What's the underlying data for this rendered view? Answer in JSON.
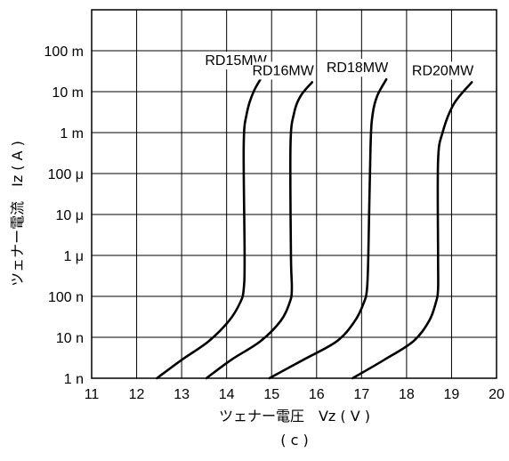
{
  "chart_data": {
    "type": "line",
    "xlabel": "ツェナー電圧　Vz ( V )",
    "ylabel": "ツェナー電流　Iz ( A )",
    "caption": "( c )",
    "xlim": [
      11,
      20
    ],
    "x_ticks": [
      11,
      12,
      13,
      14,
      15,
      16,
      17,
      18,
      19,
      20
    ],
    "x_tick_labels": [
      "11",
      "12",
      "13",
      "14",
      "15",
      "16",
      "17",
      "18",
      "19",
      "20"
    ],
    "y_scale": "log",
    "ylim": [
      1e-09,
      1
    ],
    "y_ticks": [
      1e-09,
      1e-08,
      1e-07,
      1e-06,
      1e-05,
      0.0001,
      0.001,
      0.01,
      0.1
    ],
    "y_tick_labels": [
      "1 n",
      "10 n",
      "100 n",
      "1 μ",
      "10 μ",
      "100 μ",
      "1 m",
      "10 m",
      "100 m"
    ],
    "grid": true,
    "series": [
      {
        "name": "RD15MW",
        "points": [
          [
            12.45,
            1e-09
          ],
          [
            13.0,
            2.8e-09
          ],
          [
            13.6,
            8e-09
          ],
          [
            14.05,
            2.5e-08
          ],
          [
            14.3,
            7e-08
          ],
          [
            14.38,
            1.5e-07
          ],
          [
            14.4,
            1e-06
          ],
          [
            14.38,
            0.0005
          ],
          [
            14.45,
            0.003
          ],
          [
            14.6,
            0.01
          ],
          [
            14.85,
            0.03
          ]
        ]
      },
      {
        "name": "RD16MW",
        "points": [
          [
            13.55,
            1e-09
          ],
          [
            14.1,
            2.8e-09
          ],
          [
            14.75,
            8e-09
          ],
          [
            15.2,
            2.5e-08
          ],
          [
            15.4,
            7e-08
          ],
          [
            15.45,
            1.5e-07
          ],
          [
            15.43,
            1e-06
          ],
          [
            15.42,
            0.0005
          ],
          [
            15.5,
            0.003
          ],
          [
            15.65,
            0.008
          ],
          [
            15.9,
            0.017
          ]
        ]
      },
      {
        "name": "RD18MW",
        "points": [
          [
            14.95,
            1e-09
          ],
          [
            15.7,
            2.8e-09
          ],
          [
            16.45,
            8e-09
          ],
          [
            16.85,
            2.5e-08
          ],
          [
            17.05,
            7e-08
          ],
          [
            17.12,
            1.5e-07
          ],
          [
            17.15,
            1e-06
          ],
          [
            17.2,
            0.0005
          ],
          [
            17.25,
            0.003
          ],
          [
            17.35,
            0.008
          ],
          [
            17.55,
            0.02
          ]
        ]
      },
      {
        "name": "RD20MW",
        "points": [
          [
            16.8,
            1e-09
          ],
          [
            17.5,
            2.8e-09
          ],
          [
            18.15,
            8e-09
          ],
          [
            18.5,
            2.5e-08
          ],
          [
            18.65,
            7e-08
          ],
          [
            18.7,
            1.5e-07
          ],
          [
            18.7,
            1e-06
          ],
          [
            18.7,
            0.0002
          ],
          [
            18.8,
            0.001
          ],
          [
            19.05,
            0.005
          ],
          [
            19.45,
            0.017
          ]
        ]
      }
    ]
  }
}
